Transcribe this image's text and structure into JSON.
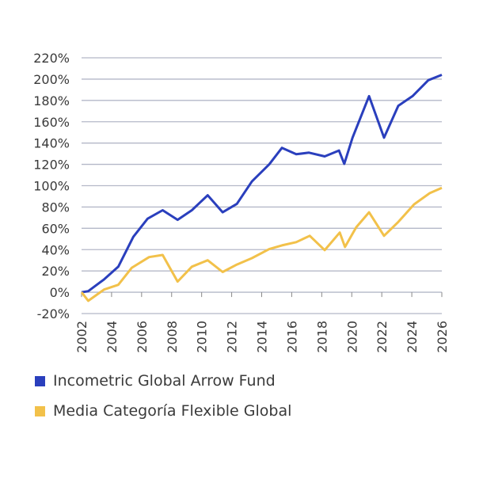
{
  "chart_data": {
    "type": "line",
    "title": "",
    "xlabel": "",
    "ylabel": "",
    "xlim": [
      2002,
      2026
    ],
    "ylim": [
      -20,
      220
    ],
    "yticks": [
      -20,
      0,
      20,
      40,
      60,
      80,
      100,
      120,
      140,
      160,
      180,
      200,
      220
    ],
    "ytick_labels": [
      "-20%",
      "0%",
      "20%",
      "40%",
      "60%",
      "80%",
      "100%",
      "120%",
      "140%",
      "160%",
      "180%",
      "200%",
      "220%"
    ],
    "xticks": [
      2002,
      2004,
      2006,
      2008,
      2010,
      2012,
      2014,
      2016,
      2018,
      2020,
      2022,
      2024,
      2026
    ],
    "xtick_labels": [
      "2002",
      "2004",
      "2006",
      "2008",
      "2010",
      "2012",
      "2014",
      "2016",
      "2018",
      "2020",
      "2022",
      "2024",
      "2026"
    ],
    "grid": true,
    "legend_position": "bottom-left",
    "series": [
      {
        "name": "Incometric Global Arrow Fund",
        "color": "#2a3fbd",
        "x": [
          2002,
          2002.45,
          2003.5,
          2004.45,
          2005.45,
          2006.4,
          2007.4,
          2008.4,
          2009.35,
          2010.4,
          2011.4,
          2012.35,
          2013.35,
          2014.5,
          2015.35,
          2016.3,
          2017.15,
          2018.2,
          2019.15,
          2019.5,
          2020.05,
          2021.15,
          2022.15,
          2023.1,
          2024.05,
          2025.1,
          2026
        ],
        "values": [
          0,
          1,
          12,
          24,
          52,
          69,
          77,
          68,
          77,
          91,
          75,
          83,
          104,
          120,
          135.5,
          129.5,
          131,
          127.5,
          133,
          120.5,
          145,
          184,
          145,
          175,
          184,
          199,
          204
        ]
      },
      {
        "name": "Media Categoría Flexible Global",
        "color": "#f2c14a",
        "x": [
          2002,
          2002.45,
          2003.5,
          2004.45,
          2005.35,
          2006.5,
          2007.4,
          2008.4,
          2009.35,
          2010.4,
          2011.4,
          2012.35,
          2013.35,
          2014.5,
          2015.35,
          2016.3,
          2017.2,
          2018.2,
          2019.2,
          2019.55,
          2020.3,
          2021.15,
          2022.15,
          2023.1,
          2024.15,
          2025.2,
          2026
        ],
        "values": [
          0,
          -8,
          2.5,
          7,
          23,
          33,
          35,
          10,
          24,
          30,
          19,
          26,
          32,
          40.5,
          44,
          47,
          53,
          39.5,
          56,
          42.5,
          61,
          75,
          53,
          66,
          82.5,
          93,
          98
        ]
      }
    ]
  }
}
